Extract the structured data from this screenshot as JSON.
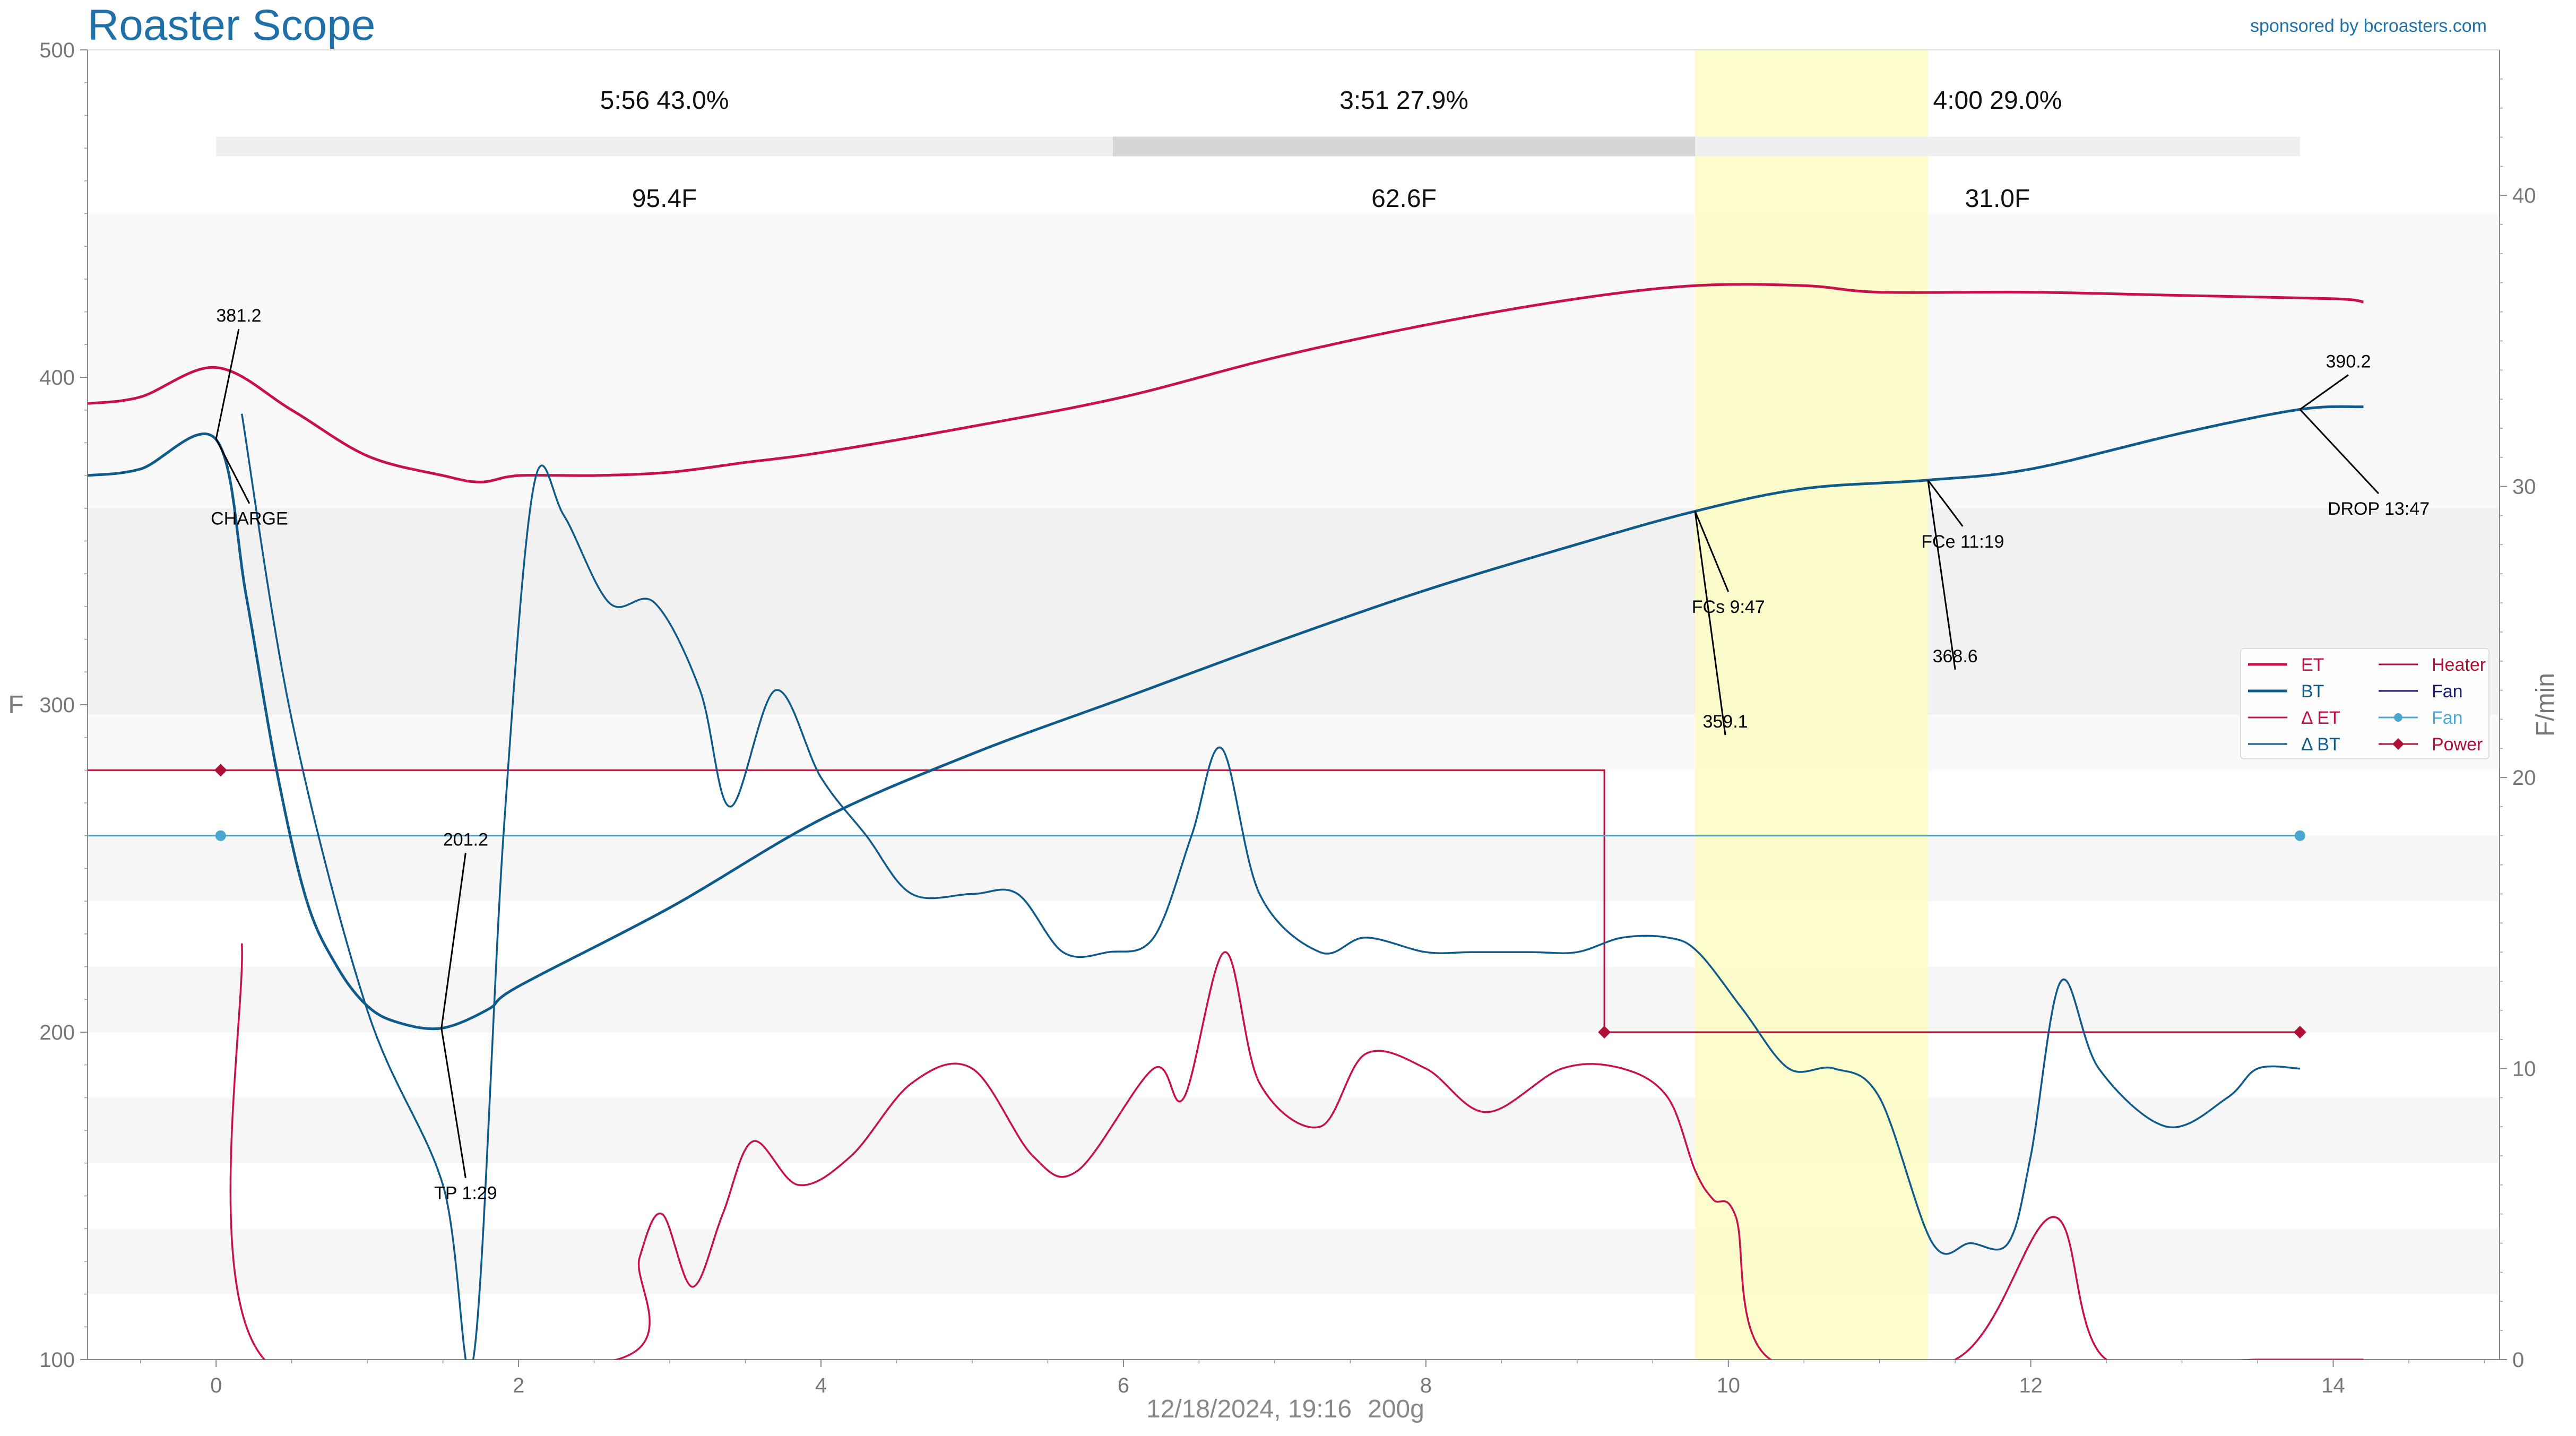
{
  "app": {
    "title": "Roaster Scope",
    "sponsor": "sponsored by bcroasters.com",
    "datetime": "12/18/2024, 19:16",
    "weight": "200g"
  },
  "chart_data": {
    "type": "line",
    "xlim": [
      -0.85,
      15.1
    ],
    "ylim": [
      100,
      500
    ],
    "y2lim": [
      0,
      45
    ],
    "ylabel": "F",
    "y2label": "F/min",
    "xticks": [
      0,
      2,
      4,
      6,
      8,
      10,
      12,
      14
    ],
    "yticks": [
      100,
      200,
      300,
      400,
      500
    ],
    "y2ticks": [
      0,
      10,
      20,
      30,
      40
    ],
    "colors": {
      "ET": "#c8104a",
      "BT": "#0e5a8a",
      "dET": "#c8104a",
      "dBT": "#0e5a8a",
      "Heater": "#b01035",
      "Fan": "#1a1a6e",
      "FanSetting": "#4aa8d0",
      "Power": "#b01035",
      "highlight": "#fdfbc4"
    },
    "phases": [
      {
        "time": "5:56",
        "pct": "43.0%",
        "rise": "95.4F",
        "start": 0.0,
        "end": 5.93
      },
      {
        "time": "3:51",
        "pct": "27.9%",
        "rise": "62.6F",
        "start": 5.93,
        "end": 9.78
      },
      {
        "time": "4:00",
        "pct": "29.0%",
        "rise": "31.0F",
        "start": 9.78,
        "end": 13.78
      }
    ],
    "development_band": [
      9.78,
      11.32
    ],
    "series": [
      {
        "name": "ET",
        "axis": "y",
        "x": [
          -0.85,
          -0.5,
          0,
          0.5,
          1,
          1.5,
          1.75,
          2,
          2.5,
          3,
          3.5,
          4,
          5,
          6,
          7,
          8,
          9,
          9.78,
          10.5,
          11,
          12,
          13,
          14,
          14.2
        ],
        "y": [
          392,
          394,
          403,
          390,
          376,
          370,
          368,
          370,
          370,
          371,
          374,
          377,
          385,
          394,
          406,
          416,
          424,
          428,
          428,
          426,
          426,
          425,
          424,
          423
        ]
      },
      {
        "name": "BT",
        "axis": "y",
        "x": [
          -0.85,
          -0.5,
          0,
          0.2,
          0.4,
          0.6,
          0.8,
          1,
          1.2,
          1.49,
          1.8,
          2,
          3,
          4,
          5,
          6,
          7,
          8,
          9,
          9.78,
          10.5,
          11.32,
          12,
          13,
          13.78,
          14.2
        ],
        "y": [
          370,
          372,
          381,
          333,
          280,
          240,
          220,
          208,
          203,
          201.2,
          207,
          214,
          238,
          265,
          285,
          302,
          319,
          335,
          349,
          359.1,
          366,
          368.6,
          372,
          383,
          390.2,
          391
        ]
      },
      {
        "name": "ΔET",
        "axis": "y2",
        "x": [
          0.17,
          0.32,
          2.65,
          2.8,
          2.95,
          3.15,
          3.35,
          3.55,
          3.85,
          4.2,
          4.6,
          5,
          5.4,
          5.7,
          6.2,
          6.4,
          6.67,
          6.9,
          7.3,
          7.6,
          8.0,
          8.4,
          8.9,
          9.3,
          9.6,
          9.78,
          9.9,
          10.05,
          10.28,
          11.5,
          12.15,
          12.5,
          13.5,
          14.2
        ],
        "y": [
          14.3,
          0,
          0,
          3.5,
          5,
          2.5,
          5,
          7.5,
          6,
          7,
          9.5,
          10,
          7,
          6.5,
          10,
          9,
          14,
          9.5,
          8,
          10.5,
          10,
          8.5,
          10,
          10,
          9,
          6.5,
          5.5,
          4.9,
          0,
          0,
          4.9,
          0,
          0,
          0
        ]
      },
      {
        "name": "ΔBT",
        "axis": "y2",
        "x": [
          0.17,
          0.5,
          1,
          1.5,
          1.7,
          1.9,
          2.1,
          2.3,
          2.6,
          2.9,
          3.2,
          3.4,
          3.7,
          4.0,
          4.3,
          4.6,
          5.0,
          5.3,
          5.6,
          5.9,
          6.2,
          6.45,
          6.65,
          6.9,
          7.3,
          7.6,
          8.0,
          8.3,
          8.7,
          9.0,
          9.3,
          9.6,
          9.8,
          10.1,
          10.4,
          10.7,
          11.0,
          11.35,
          11.6,
          11.85,
          12.0,
          12.2,
          12.45,
          12.9,
          13.3,
          13.5,
          13.78
        ],
        "y": [
          32.5,
          22,
          12,
          6,
          0,
          18,
          30,
          29,
          26,
          26,
          23,
          19,
          23,
          20,
          18,
          16,
          16,
          16,
          14,
          14,
          14.5,
          18,
          21,
          16,
          14,
          14.5,
          14,
          14,
          14,
          14,
          14.5,
          14.5,
          14,
          12,
          10,
          10,
          9,
          4,
          4,
          4,
          7,
          13,
          10,
          8,
          9,
          10,
          10
        ]
      }
    ],
    "settings": [
      {
        "name": "Heater",
        "points": [
          [
            -0.85,
            280
          ],
          [
            0.03,
            280
          ],
          [
            9.18,
            280
          ],
          [
            9.18,
            200
          ],
          [
            13.78,
            200
          ]
        ]
      },
      {
        "name": "FanSetting",
        "points": [
          [
            -0.85,
            260
          ],
          [
            0.03,
            260
          ],
          [
            13.78,
            260
          ]
        ]
      }
    ],
    "markers": [
      {
        "name": "Power",
        "x": 0.03,
        "y": 280
      },
      {
        "name": "Power",
        "x": 9.18,
        "y": 200
      },
      {
        "name": "Power",
        "x": 13.78,
        "y": 200
      },
      {
        "name": "FanSetting",
        "x": 0.03,
        "y": 260
      },
      {
        "name": "FanSetting",
        "x": 13.78,
        "y": 260
      }
    ],
    "annotations": [
      {
        "event": "CHARGE",
        "x": 0.0,
        "y": 381.2,
        "label_top": "381.2",
        "label_bottom": "CHARGE"
      },
      {
        "event": "TP",
        "x": 1.49,
        "y": 201.2,
        "label_top": "201.2",
        "label_bottom": "TP 1:29"
      },
      {
        "event": "FCs",
        "x": 9.78,
        "y": 359.1,
        "label_top": "359.1",
        "label_bottom": "FCs 9:47"
      },
      {
        "event": "FCe",
        "x": 11.32,
        "y": 368.6,
        "label_top": "368.6",
        "label_bottom": "FCe 11:19"
      },
      {
        "event": "DROP",
        "x": 13.78,
        "y": 390.2,
        "label_top": "390.2",
        "label_bottom": "DROP 13:47"
      }
    ],
    "legend": {
      "placement": "right",
      "entries": [
        {
          "label": "ET",
          "series": "ET"
        },
        {
          "label": "Heater",
          "series": "Heater"
        },
        {
          "label": "BT",
          "series": "BT"
        },
        {
          "label": "Fan",
          "series": "Fan"
        },
        {
          "label": "Δ ET",
          "series": "dET"
        },
        {
          "label": "Fan",
          "series": "FanSetting"
        },
        {
          "label": "Δ BT",
          "series": "dBT"
        },
        {
          "label": "Power",
          "series": "Power"
        }
      ]
    }
  }
}
